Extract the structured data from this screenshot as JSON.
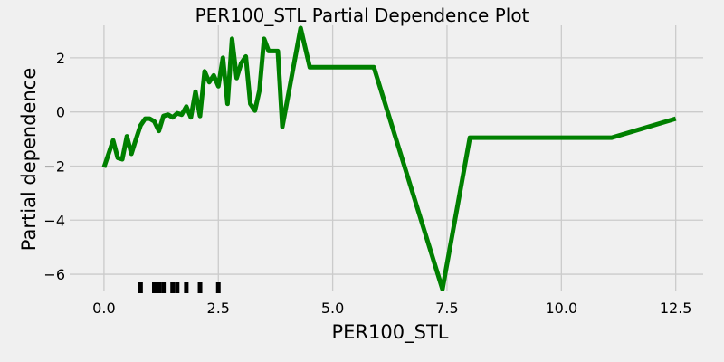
{
  "chart_data": {
    "type": "line",
    "title": "PER100_STL Partial Dependence Plot",
    "xlabel": "PER100_STL",
    "ylabel": "Partial dependence",
    "xlim": [
      -0.75,
      13.1
    ],
    "ylim": [
      -6.6,
      3.2
    ],
    "x_ticks": [
      0.0,
      2.5,
      5.0,
      7.5,
      10.0,
      12.5
    ],
    "x_tick_labels": [
      "0.0",
      "2.5",
      "5.0",
      "7.5",
      "10.0",
      "12.5"
    ],
    "y_ticks": [
      -6,
      -4,
      -2,
      0,
      2
    ],
    "y_tick_labels": [
      "−6",
      "−4",
      "−2",
      "0",
      "2"
    ],
    "grid": true,
    "line_color": "#008000",
    "rug_color": "#000000",
    "rug_values": [
      0.8,
      1.1,
      1.2,
      1.3,
      1.5,
      1.6,
      1.8,
      2.1,
      2.5
    ],
    "series": [
      {
        "x": [
          0.0,
          0.2,
          0.3,
          0.4,
          0.5,
          0.6,
          0.7,
          0.8,
          0.9,
          1.0,
          1.1,
          1.2,
          1.3,
          1.4,
          1.5,
          1.6,
          1.7,
          1.8,
          1.9,
          2.0,
          2.1,
          2.2,
          2.3,
          2.4,
          2.5,
          2.6,
          2.7,
          2.8,
          2.9,
          3.0,
          3.1,
          3.2,
          3.3,
          3.4,
          3.5,
          3.6,
          3.7,
          3.8,
          3.9,
          4.3,
          4.5,
          5.9,
          7.4,
          8.0,
          11.1,
          12.5
        ],
        "values": [
          -2.05,
          -1.05,
          -1.7,
          -1.75,
          -0.9,
          -1.55,
          -1.0,
          -0.5,
          -0.25,
          -0.25,
          -0.35,
          -0.7,
          -0.15,
          -0.1,
          -0.2,
          -0.05,
          -0.1,
          0.2,
          -0.2,
          0.75,
          -0.15,
          1.5,
          1.1,
          1.35,
          0.95,
          2.0,
          0.3,
          2.7,
          1.25,
          1.8,
          2.05,
          0.3,
          0.05,
          0.8,
          2.7,
          2.25,
          2.25,
          2.25,
          -0.55,
          3.1,
          1.65,
          1.65,
          -6.55,
          -0.95,
          -0.95,
          -0.25
        ]
      }
    ]
  }
}
